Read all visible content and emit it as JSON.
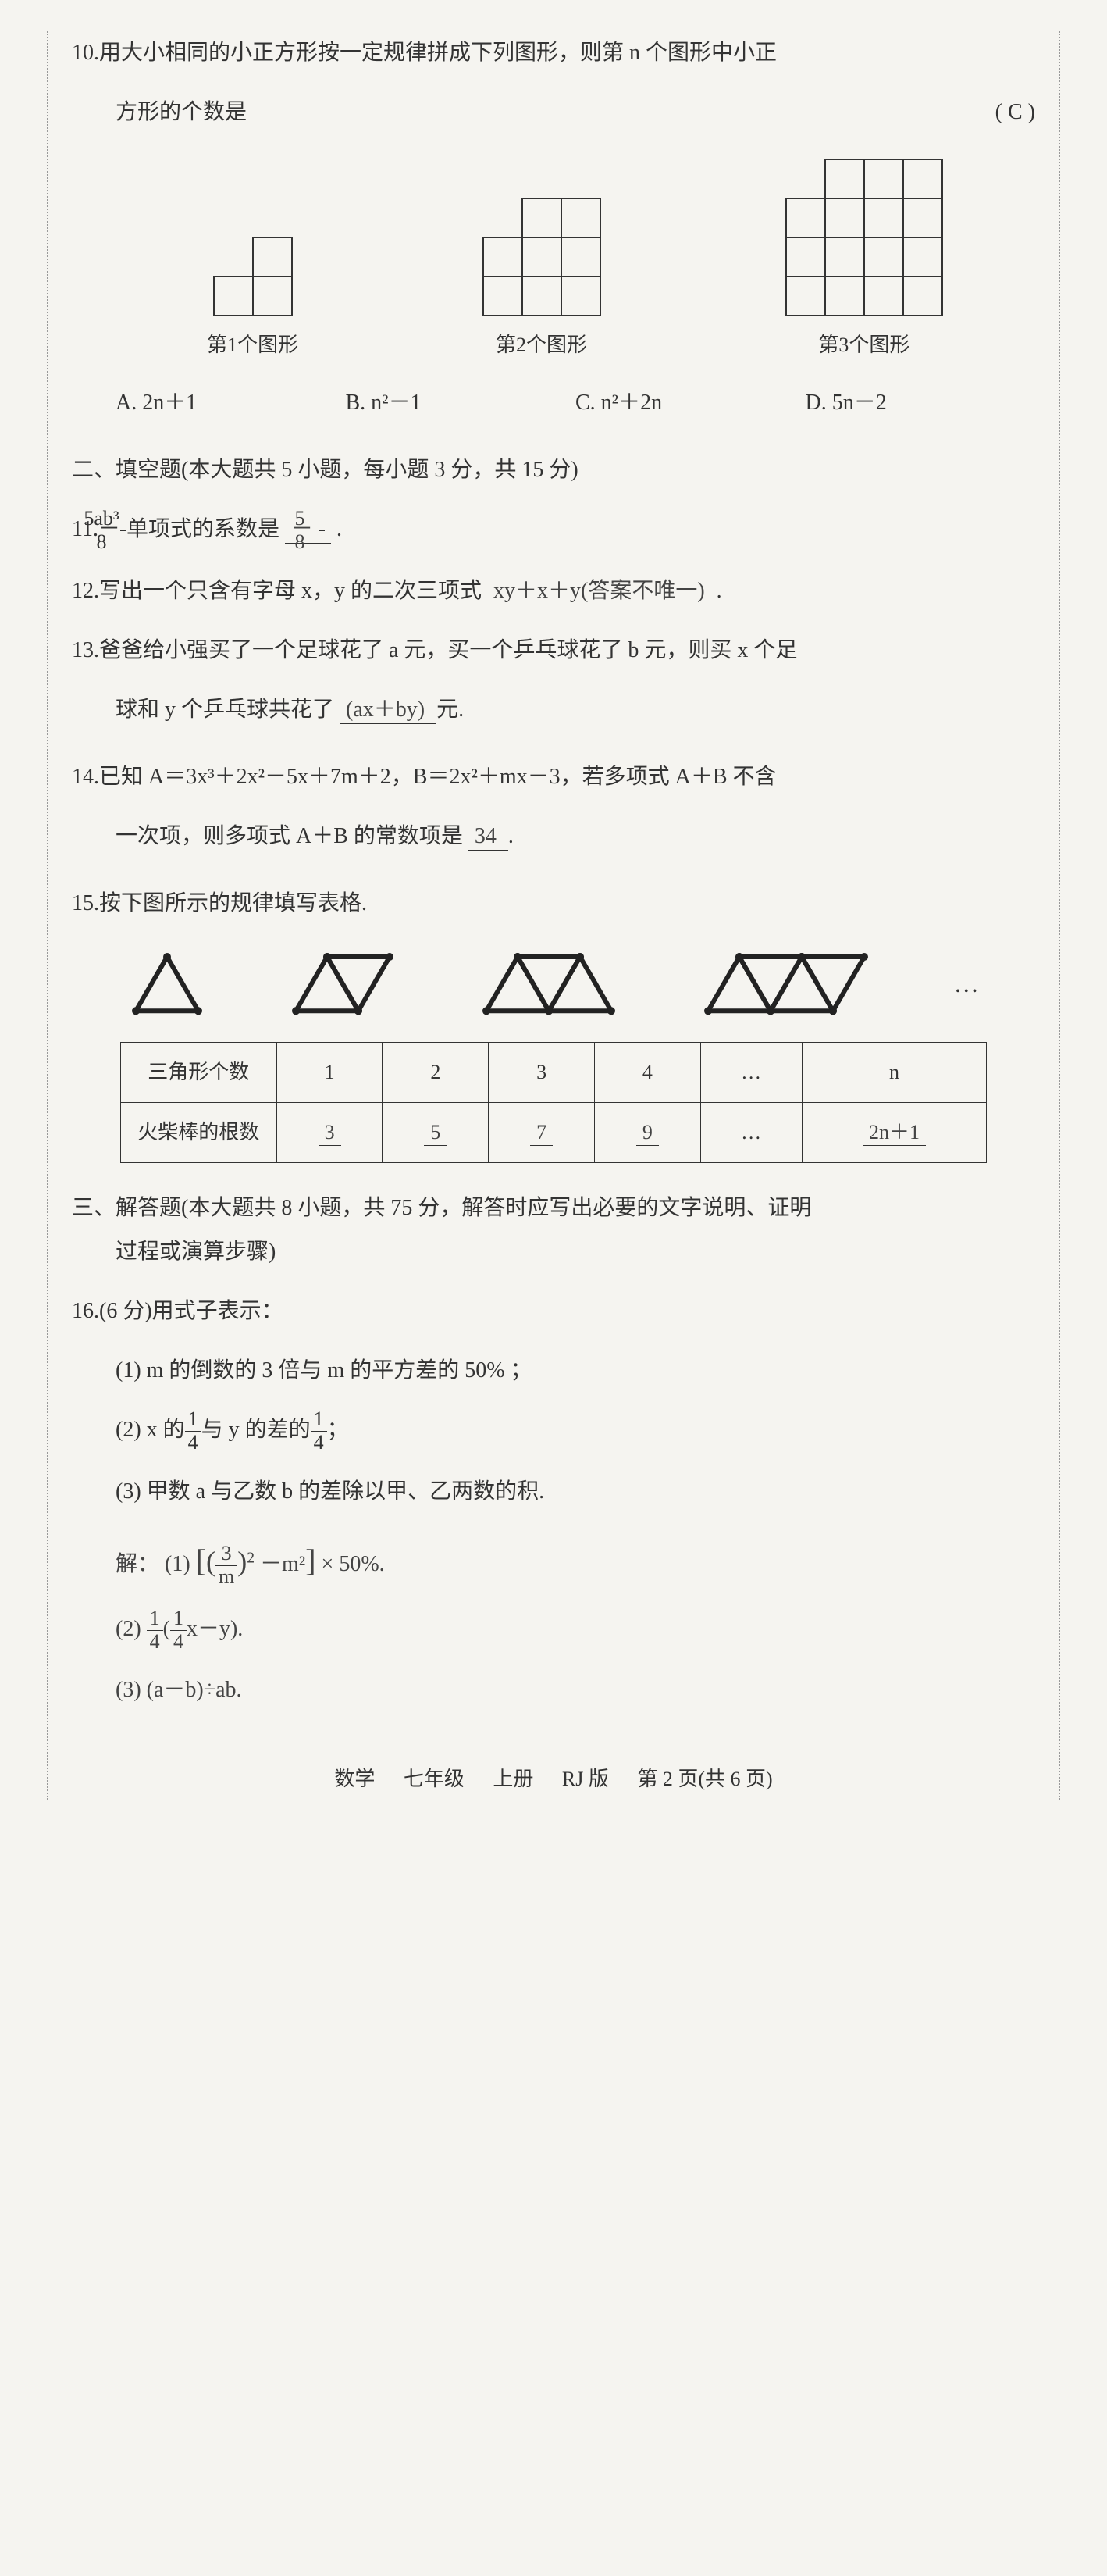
{
  "q10": {
    "num": "10.",
    "text1": "用大小相同的小正方形按一定规律拼成下列图形，则第 n 个图形中小正",
    "text2": "方形的个数是",
    "answer": "( C )",
    "fig1_label": "第1个图形",
    "fig2_label": "第2个图形",
    "fig3_label": "第3个图形",
    "optA": "A. 2n＋1",
    "optB": "B. n²－1",
    "optC": "C. n²＋2n",
    "optD": "D. 5n－2",
    "fig1": {
      "cells": [
        [
          0,
          1
        ],
        [
          1,
          0
        ],
        [
          1,
          1
        ]
      ],
      "size": 50,
      "cols": 2,
      "rows": 2
    },
    "fig2": {
      "cells": [
        [
          0,
          1
        ],
        [
          0,
          2
        ],
        [
          1,
          0
        ],
        [
          1,
          1
        ],
        [
          1,
          2
        ],
        [
          2,
          0
        ],
        [
          2,
          1
        ],
        [
          2,
          2
        ]
      ],
      "size": 50,
      "cols": 3,
      "rows": 3
    },
    "fig3": {
      "cells": [
        [
          0,
          1
        ],
        [
          0,
          2
        ],
        [
          0,
          3
        ],
        [
          1,
          0
        ],
        [
          1,
          1
        ],
        [
          1,
          2
        ],
        [
          1,
          3
        ],
        [
          2,
          0
        ],
        [
          2,
          1
        ],
        [
          2,
          2
        ],
        [
          2,
          3
        ],
        [
          3,
          0
        ],
        [
          3,
          1
        ],
        [
          3,
          2
        ],
        [
          3,
          3
        ]
      ],
      "size": 50,
      "cols": 4,
      "rows": 4
    },
    "stroke": "#333",
    "stroke_width": 2
  },
  "section2": {
    "title": "二、填空题(本大题共 5 小题，每小题 3 分，共 15 分)"
  },
  "q11": {
    "num": "11.",
    "pre": "－",
    "frac_num": "5ab³",
    "frac_den": "8",
    "mid": "单项式的系数是",
    "ans_pre": " － ",
    "ans_num": "5",
    "ans_den": "8",
    "end": " ."
  },
  "q12": {
    "num": "12.",
    "text": "写出一个只含有字母 x，y 的二次三项式",
    "ans": " xy＋x＋y(答案不唯一) ",
    "end": "."
  },
  "q13": {
    "num": "13.",
    "text1": "爸爸给小强买了一个足球花了 a 元，买一个乒乓球花了 b 元，则买 x 个足",
    "text2": "球和 y 个乒乓球共花了",
    "ans": " (ax＋by) ",
    "end": "元."
  },
  "q14": {
    "num": "14.",
    "text1": "已知 A＝3x³＋2x²－5x＋7m＋2，B＝2x²＋mx－3，若多项式 A＋B 不含",
    "text2": "一次项，则多项式 A＋B 的常数项是",
    "ans": " 34 ",
    "end": "."
  },
  "q15": {
    "num": "15.",
    "text": "按下图所示的规律填写表格.",
    "triangles": {
      "stroke": "#222",
      "stroke_width": 6,
      "fill": "none",
      "dot_r": 5,
      "groups": [
        1,
        2,
        3,
        4
      ],
      "side": 80,
      "ellipsis": "…"
    },
    "table": {
      "row1_label": "三角形个数",
      "row1": [
        "1",
        "2",
        "3",
        "4",
        "…",
        "n"
      ],
      "row2_label": "火柴棒的根数",
      "row2": [
        "3",
        "5",
        "7",
        "9",
        "…",
        "2n＋1"
      ],
      "handwritten_cols": [
        0,
        1,
        2,
        3,
        5
      ]
    }
  },
  "section3": {
    "title1": "三、解答题(本大题共 8 小题，共 75 分，解答时应写出必要的文字说明、证明",
    "title2": "过程或演算步骤)"
  },
  "q16": {
    "num": "16.",
    "text": "(6 分)用式子表示：",
    "sub1": "(1) m 的倒数的 3 倍与 m 的平方差的 50% ；",
    "sub2_pre": "(2) x 的",
    "sub2_frac1_num": "1",
    "sub2_frac1_den": "4",
    "sub2_mid": "与 y 的差的",
    "sub2_frac2_num": "1",
    "sub2_frac2_den": "4",
    "sub2_end": "；",
    "sub3": "(3) 甲数 a 与乙数 b 的差除以甲、乙两数的积.",
    "sol_label": "解：",
    "sol1_pre": "(1)",
    "sol1_frac_num": "3",
    "sol1_frac_den": "m",
    "sol1_mid": "－m²",
    "sol1_end": "× 50%.",
    "sol2_pre": "(2)",
    "sol2_f1_num": "1",
    "sol2_f1_den": "4",
    "sol2_mid1": "(",
    "sol2_f2_num": "1",
    "sol2_f2_den": "4",
    "sol2_mid2": "x－y).",
    "sol3": "(3) (a－b)÷ab."
  },
  "footer": {
    "a": "数学",
    "b": "七年级",
    "c": "上册",
    "d": "RJ 版",
    "e": "第 2 页(共 6 页)"
  }
}
